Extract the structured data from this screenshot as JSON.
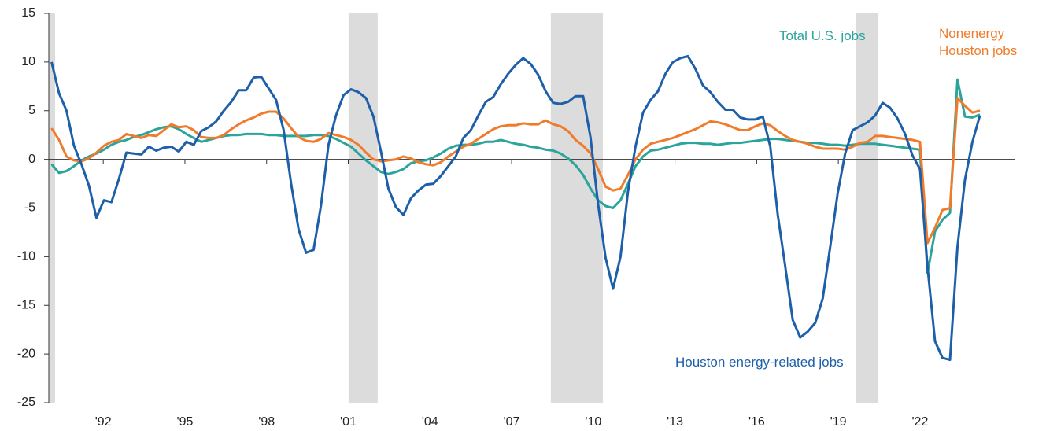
{
  "chart_data": {
    "type": "line",
    "x": [
      1990.1,
      1990.375,
      1990.65,
      1990.925,
      1991.2,
      1991.475,
      1991.75,
      1992.025,
      1992.3,
      1992.575,
      1992.85,
      1993.125,
      1993.4,
      1993.675,
      1993.95,
      1994.225,
      1994.5,
      1994.775,
      1995.05,
      1995.325,
      1995.6,
      1995.875,
      1996.15,
      1996.425,
      1996.7,
      1996.975,
      1997.25,
      1997.525,
      1997.8,
      1998.075,
      1998.35,
      1998.625,
      1998.9,
      1999.175,
      1999.45,
      1999.725,
      2000,
      2000.275,
      2000.55,
      2000.825,
      2001.1,
      2001.375,
      2001.65,
      2001.925,
      2002.2,
      2002.475,
      2002.75,
      2003.025,
      2003.3,
      2003.575,
      2003.85,
      2004.125,
      2004.4,
      2004.675,
      2004.95,
      2005.225,
      2005.5,
      2005.775,
      2006.05,
      2006.325,
      2006.6,
      2006.875,
      2007.15,
      2007.425,
      2007.7,
      2007.975,
      2008.25,
      2008.525,
      2008.8,
      2009.075,
      2009.35,
      2009.625,
      2009.9,
      2010.175,
      2010.45,
      2010.725,
      2011,
      2011.275,
      2011.55,
      2011.825,
      2012.1,
      2012.375,
      2012.65,
      2012.925,
      2013.2,
      2013.475,
      2013.75,
      2014.025,
      2014.3,
      2014.575,
      2014.85,
      2015.125,
      2015.4,
      2015.675,
      2015.95,
      2016.225,
      2016.5,
      2016.775,
      2017.05,
      2017.325,
      2017.6,
      2017.875,
      2018.15,
      2018.425,
      2018.7,
      2018.975,
      2019.25,
      2019.525,
      2019.8,
      2020.075,
      2020.35,
      2020.625,
      2020.9,
      2021.175,
      2021.45,
      2021.725,
      2022,
      2022.275,
      2022.55,
      2022.825,
      2023.1,
      2023.375,
      2023.65,
      2023.925,
      2024.2
    ],
    "series": [
      {
        "name": "Total U.S. jobs",
        "color": "#2ba49b",
        "values": [
          -0.5,
          -1.4,
          -1.2,
          -0.7,
          -0.1,
          0.3,
          0.6,
          1,
          1.5,
          1.8,
          2,
          2.3,
          2.5,
          2.8,
          3.1,
          3.3,
          3.4,
          3.1,
          2.6,
          2.2,
          1.8,
          2,
          2.2,
          2.4,
          2.5,
          2.5,
          2.6,
          2.6,
          2.6,
          2.5,
          2.5,
          2.4,
          2.4,
          2.4,
          2.4,
          2.5,
          2.5,
          2.4,
          2.1,
          1.7,
          1.3,
          0.6,
          -0.1,
          -0.7,
          -1.3,
          -1.5,
          -1.3,
          -1,
          -0.4,
          -0.2,
          -0.1,
          0.2,
          0.6,
          1.1,
          1.4,
          1.5,
          1.5,
          1.6,
          1.8,
          1.8,
          2,
          1.8,
          1.6,
          1.5,
          1.3,
          1.2,
          1,
          0.9,
          0.6,
          0.1,
          -0.6,
          -1.6,
          -3,
          -4.2,
          -4.8,
          -5,
          -4.2,
          -2.5,
          -0.7,
          0.3,
          0.9,
          1,
          1.2,
          1.4,
          1.6,
          1.7,
          1.7,
          1.6,
          1.6,
          1.5,
          1.6,
          1.7,
          1.7,
          1.8,
          1.9,
          2,
          2.1,
          2.1,
          2,
          1.9,
          1.8,
          1.7,
          1.7,
          1.6,
          1.5,
          1.5,
          1.4,
          1.5,
          1.6,
          1.6,
          1.6,
          1.5,
          1.4,
          1.3,
          1.2,
          1.1,
          1,
          -11.7,
          -7.4,
          -6.2,
          -5.5,
          8.2,
          4.4,
          4.3,
          4.6
        ]
      },
      {
        "name": "Nonenergy Houston jobs",
        "color": "#f07b2b",
        "values": [
          3.2,
          2,
          0.3,
          -0.1,
          -0.2,
          0.1,
          0.7,
          1.4,
          1.8,
          2,
          2.6,
          2.4,
          2.2,
          2.5,
          2.4,
          3,
          3.6,
          3.3,
          3.4,
          3,
          2.3,
          2.2,
          2.2,
          2.5,
          3.1,
          3.6,
          4,
          4.3,
          4.7,
          4.9,
          4.9,
          4.2,
          3.2,
          2.3,
          1.9,
          1.8,
          2.1,
          2.7,
          2.5,
          2.3,
          2,
          1.5,
          0.7,
          0,
          -0.2,
          -0.1,
          0,
          0.3,
          0.1,
          -0.3,
          -0.5,
          -0.6,
          -0.3,
          0.3,
          0.8,
          1.3,
          1.6,
          2.1,
          2.6,
          3.1,
          3.4,
          3.5,
          3.5,
          3.7,
          3.6,
          3.6,
          4,
          3.6,
          3.4,
          2.9,
          2,
          1.4,
          0.6,
          -1,
          -2.8,
          -3.2,
          -3,
          -1.6,
          0,
          1,
          1.6,
          1.8,
          2,
          2.2,
          2.5,
          2.8,
          3.1,
          3.5,
          3.9,
          3.8,
          3.6,
          3.3,
          3,
          3,
          3.4,
          3.7,
          3.5,
          2.9,
          2.4,
          2,
          1.8,
          1.6,
          1.3,
          1.1,
          1.1,
          1.1,
          1,
          1.3,
          1.7,
          1.8,
          2.4,
          2.4,
          2.3,
          2.2,
          2.1,
          2,
          1.8,
          -8.6,
          -7,
          -5.2,
          -5,
          6.3,
          5.5,
          4.8,
          5
        ]
      },
      {
        "name": "Houston energy-related jobs",
        "color": "#1d5fa8",
        "values": [
          10,
          6.8,
          5,
          1.4,
          -0.5,
          -2.7,
          -6,
          -4.2,
          -4.4,
          -2,
          0.7,
          0.6,
          0.5,
          1.3,
          0.9,
          1.2,
          1.3,
          0.8,
          1.8,
          1.5,
          2.9,
          3.3,
          3.9,
          5,
          5.9,
          7.1,
          7.1,
          8.4,
          8.5,
          7.3,
          6.1,
          3,
          -2.5,
          -7.2,
          -9.6,
          -9.3,
          -4.7,
          1.5,
          4.5,
          6.6,
          7.2,
          6.9,
          6.3,
          4.4,
          0.8,
          -3,
          -4.9,
          -5.7,
          -4,
          -3.2,
          -2.6,
          -2.5,
          -1.7,
          -0.7,
          0.3,
          2.2,
          3,
          4.5,
          5.9,
          6.4,
          7.7,
          8.8,
          9.7,
          10.4,
          9.8,
          8.7,
          7,
          5.8,
          5.7,
          5.9,
          6.5,
          6.5,
          2.2,
          -4.6,
          -10.1,
          -13.3,
          -10,
          -3.3,
          1.3,
          4.8,
          6.1,
          7,
          8.8,
          10,
          10.4,
          10.6,
          9.3,
          7.6,
          6.9,
          5.9,
          5.1,
          5.1,
          4.3,
          4.1,
          4.1,
          4.4,
          1.3,
          -5.7,
          -11,
          -16.5,
          -18.3,
          -17.7,
          -16.8,
          -14.3,
          -9,
          -3.5,
          0.6,
          3,
          3.4,
          3.8,
          4.5,
          5.8,
          5.3,
          4.2,
          2.6,
          0.4,
          -1,
          -11,
          -18.7,
          -20.4,
          -20.6,
          -9,
          -2.1,
          1.8,
          4.5
        ]
      }
    ],
    "shading": [
      [
        1990,
        1990.23
      ],
      [
        2001.01,
        2002.08
      ],
      [
        2008.44,
        2010.35
      ],
      [
        2019.66,
        2020.47
      ]
    ],
    "shading_color": "#dcdcdc",
    "xlim": [
      1990,
      2025.5
    ],
    "xticks": [
      {
        "value": 1992,
        "label": "'92"
      },
      {
        "value": 1995,
        "label": "'95"
      },
      {
        "value": 1998,
        "label": "'98"
      },
      {
        "value": 2001,
        "label": "'01"
      },
      {
        "value": 2004,
        "label": "'04"
      },
      {
        "value": 2007,
        "label": "'07"
      },
      {
        "value": 2010,
        "label": "'10"
      },
      {
        "value": 2013,
        "label": "'13"
      },
      {
        "value": 2016,
        "label": "'16"
      },
      {
        "value": 2019,
        "label": "'19"
      },
      {
        "value": 2022,
        "label": "'22"
      }
    ],
    "ylim": [
      -25,
      15
    ],
    "yticks": [
      15,
      10,
      5,
      0,
      -5,
      -10,
      -15,
      -20,
      -25
    ]
  }
}
